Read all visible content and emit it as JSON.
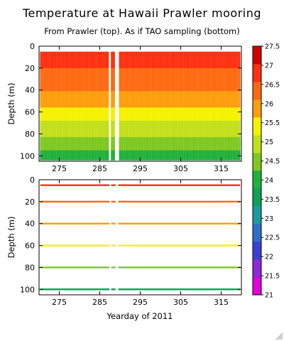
{
  "chart_data": {
    "type": "heatmap",
    "title": "Temperature at Hawaii Prawler mooring",
    "subtitle": "From Prawler (top). As if TAO sampling (bottom)",
    "xlabel": "Yearday of 2011",
    "ylabel": "Depth (m)",
    "xlim": [
      270,
      320
    ],
    "x_ticks": [
      275,
      285,
      295,
      305,
      315
    ],
    "panels": [
      {
        "name": "top",
        "ylim": [
          105,
          0
        ],
        "y_ticks": [
          0,
          20,
          40,
          60,
          80,
          100
        ],
        "profile_depth_range": [
          5,
          103
        ],
        "data_gaps_yearday": [
          [
            287.3,
            287.8
          ],
          [
            288.8,
            289.7
          ]
        ],
        "temperature_by_depth": [
          {
            "depth": 5,
            "temp": 26.8
          },
          {
            "depth": 20,
            "temp": 26.6
          },
          {
            "depth": 40,
            "temp": 26.1
          },
          {
            "depth": 60,
            "temp": 25.5
          },
          {
            "depth": 80,
            "temp": 24.8
          },
          {
            "depth": 100,
            "temp": 24.0
          }
        ]
      },
      {
        "name": "bottom",
        "ylim": [
          105,
          0
        ],
        "y_ticks": [
          0,
          20,
          40,
          60,
          80,
          100
        ],
        "sampling_depths": [
          5,
          20,
          40,
          60,
          80,
          100
        ],
        "data_gaps_yearday": [
          [
            287.3,
            287.8
          ],
          [
            288.8,
            289.7
          ]
        ],
        "temperature_at_depth": [
          26.8,
          26.5,
          26.1,
          25.6,
          24.6,
          23.4
        ]
      }
    ],
    "colorbar": {
      "min": 21,
      "max": 27.5,
      "ticks": [
        "27.5",
        "27",
        "26.5",
        "26",
        "25.5",
        "25",
        "24.5",
        "24",
        "23.5",
        "23",
        "22.5",
        "22",
        "21.5",
        "21"
      ],
      "colors": [
        "#e000e0",
        "#8c28d8",
        "#3b3fd6",
        "#2f6fc8",
        "#1d9aa0",
        "#0f9f55",
        "#22b03c",
        "#7ec820",
        "#c2e01a",
        "#f5f200",
        "#ff9d0c",
        "#ff6a10",
        "#ff3010",
        "#d20000"
      ]
    }
  }
}
